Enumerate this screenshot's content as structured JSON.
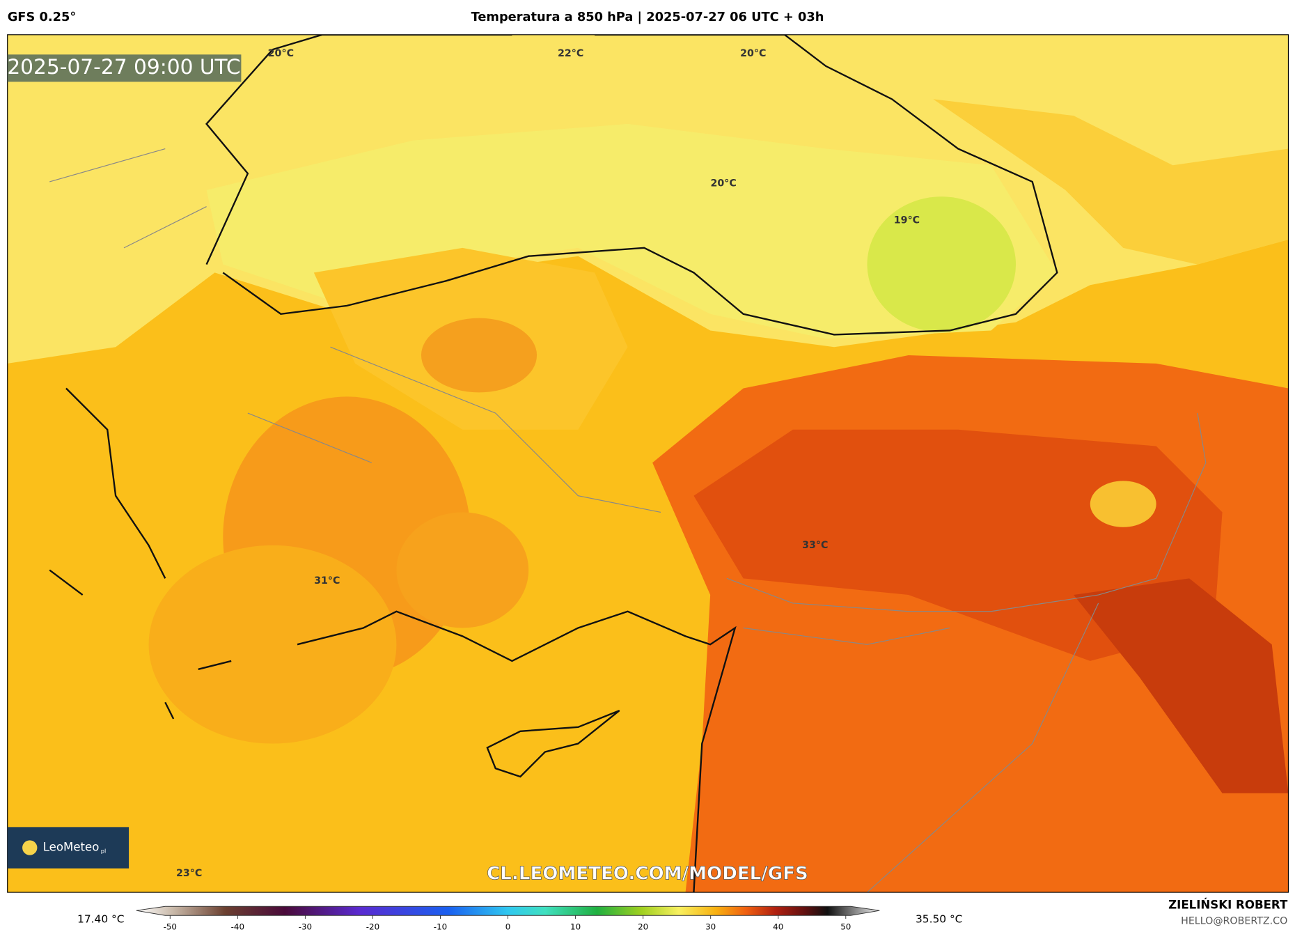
{
  "header": {
    "model": "GFS 0.25°",
    "title": "Temperatura a 850 hPa | 2025-07-27 06 UTC + 03h"
  },
  "map": {
    "timestamp": "2025-07-27 09:00 UTC",
    "labels": [
      "20°C",
      "22°C",
      "20°C",
      "20°C",
      "19°C",
      "33°C",
      "31°C",
      "23°C"
    ],
    "watermark": "CL.LEOMETEO.COM/MODEL/GFS",
    "logo": {
      "name": "LeoMeteo",
      "suffix": "pl"
    }
  },
  "colorbar": {
    "min_label": "17.40 °C",
    "max_label": "35.50 °C",
    "range": [
      -55,
      55
    ],
    "ticks": [
      -50,
      -40,
      -30,
      -20,
      -10,
      0,
      10,
      20,
      30,
      40,
      50
    ]
  },
  "footer": {
    "author": "ZIELIŃSKI ROBERT",
    "email": "HELLO@ROBERTZ.CO"
  }
}
